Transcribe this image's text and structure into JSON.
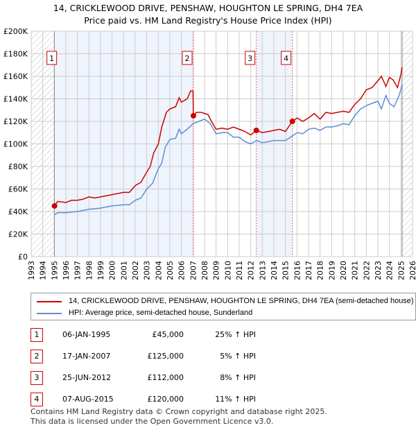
{
  "header": {
    "title": "14, CRICKLEWOOD DRIVE, PENSHAW, HOUGHTON LE SPRING, DH4 7EA",
    "subtitle": "Price paid vs. HM Land Registry's House Price Index (HPI)"
  },
  "colors": {
    "property": "#cc0000",
    "hpi": "#5b8fd4",
    "shade": "#eef3fc"
  },
  "chart_data": {
    "type": "line",
    "xlim": [
      1993,
      2026
    ],
    "ylim": [
      0,
      200000
    ],
    "x_ticks": [
      "1993",
      "1994",
      "1995",
      "1996",
      "1997",
      "1998",
      "1999",
      "2000",
      "2001",
      "2002",
      "2003",
      "2004",
      "2005",
      "2006",
      "2007",
      "2008",
      "2009",
      "2010",
      "2011",
      "2012",
      "2013",
      "2014",
      "2015",
      "2016",
      "2017",
      "2018",
      "2019",
      "2020",
      "2021",
      "2022",
      "2023",
      "2024",
      "2025",
      "2026"
    ],
    "y_ticks": [
      "£0",
      "£20K",
      "£40K",
      "£60K",
      "£80K",
      "£100K",
      "£120K",
      "£140K",
      "£160K",
      "£180K",
      "£200K"
    ],
    "grid": true,
    "series": [
      {
        "name": "14, CRICKLEWOOD DRIVE, PENSHAW, HOUGHTON LE SPRING, DH4 7EA (semi-detached house)",
        "points": [
          [
            1995.0,
            45
          ],
          [
            1995.3,
            49
          ],
          [
            1996,
            48
          ],
          [
            1996.5,
            50
          ],
          [
            1997,
            50
          ],
          [
            1997.5,
            51
          ],
          [
            1998,
            53
          ],
          [
            1998.5,
            52
          ],
          [
            1999,
            53
          ],
          [
            1999.5,
            54
          ],
          [
            2000,
            55
          ],
          [
            2000.5,
            56
          ],
          [
            2001,
            57
          ],
          [
            2001.5,
            57
          ],
          [
            2002,
            63
          ],
          [
            2002.5,
            66
          ],
          [
            2003,
            75
          ],
          [
            2003.3,
            80
          ],
          [
            2003.6,
            92
          ],
          [
            2004,
            100
          ],
          [
            2004.3,
            115
          ],
          [
            2004.7,
            128
          ],
          [
            2005,
            131
          ],
          [
            2005.5,
            133
          ],
          [
            2005.8,
            141
          ],
          [
            2006,
            137
          ],
          [
            2006.5,
            140
          ],
          [
            2006.8,
            147
          ],
          [
            2007.0,
            147
          ],
          [
            2007.04,
            125
          ],
          [
            2007.3,
            128
          ],
          [
            2007.7,
            128
          ],
          [
            2008,
            127
          ],
          [
            2008.3,
            126
          ],
          [
            2008.6,
            120
          ],
          [
            2009,
            113
          ],
          [
            2009.5,
            114
          ],
          [
            2010,
            113
          ],
          [
            2010.5,
            115
          ],
          [
            2011,
            113
          ],
          [
            2011.5,
            111
          ],
          [
            2012,
            108
          ],
          [
            2012.5,
            112
          ],
          [
            2013,
            110
          ],
          [
            2013.5,
            111
          ],
          [
            2014,
            112
          ],
          [
            2014.5,
            113
          ],
          [
            2015,
            111
          ],
          [
            2015.6,
            120
          ],
          [
            2016,
            123
          ],
          [
            2016.5,
            120
          ],
          [
            2017,
            123
          ],
          [
            2017.5,
            127
          ],
          [
            2018,
            122
          ],
          [
            2018.5,
            128
          ],
          [
            2019,
            127
          ],
          [
            2019.5,
            128
          ],
          [
            2020,
            129
          ],
          [
            2020.5,
            128
          ],
          [
            2021,
            135
          ],
          [
            2021.5,
            140
          ],
          [
            2022,
            148
          ],
          [
            2022.5,
            150
          ],
          [
            2023,
            156
          ],
          [
            2023.3,
            160
          ],
          [
            2023.7,
            151
          ],
          [
            2024,
            159
          ],
          [
            2024.3,
            157
          ],
          [
            2024.7,
            150
          ],
          [
            2025,
            162
          ],
          [
            2025.1,
            168
          ]
        ]
      },
      {
        "name": "HPI: Average price, semi-detached house, Sunderland",
        "points": [
          [
            1995,
            37
          ],
          [
            1995.3,
            39
          ],
          [
            1996,
            39
          ],
          [
            1997,
            40
          ],
          [
            1998,
            42
          ],
          [
            1999,
            43
          ],
          [
            2000,
            45
          ],
          [
            2001,
            46
          ],
          [
            2001.5,
            46
          ],
          [
            2002,
            50
          ],
          [
            2002.5,
            52
          ],
          [
            2003,
            60
          ],
          [
            2003.5,
            65
          ],
          [
            2004,
            78
          ],
          [
            2004.3,
            83
          ],
          [
            2004.6,
            97
          ],
          [
            2005,
            104
          ],
          [
            2005.5,
            105
          ],
          [
            2005.8,
            113
          ],
          [
            2006,
            109
          ],
          [
            2006.5,
            113
          ],
          [
            2007,
            118
          ],
          [
            2007.5,
            120
          ],
          [
            2008,
            122
          ],
          [
            2008.5,
            118
          ],
          [
            2009,
            109
          ],
          [
            2009.5,
            110
          ],
          [
            2010,
            110
          ],
          [
            2010.5,
            106
          ],
          [
            2011,
            106
          ],
          [
            2011.5,
            102
          ],
          [
            2012,
            100
          ],
          [
            2012.5,
            103
          ],
          [
            2013,
            101
          ],
          [
            2014,
            103
          ],
          [
            2015,
            103
          ],
          [
            2015.6,
            107
          ],
          [
            2016,
            110
          ],
          [
            2016.5,
            109
          ],
          [
            2017,
            113
          ],
          [
            2017.5,
            114
          ],
          [
            2018,
            112
          ],
          [
            2018.5,
            115
          ],
          [
            2019,
            115
          ],
          [
            2019.5,
            116
          ],
          [
            2020,
            118
          ],
          [
            2020.5,
            117
          ],
          [
            2021,
            125
          ],
          [
            2021.5,
            131
          ],
          [
            2022,
            134
          ],
          [
            2022.5,
            136
          ],
          [
            2023,
            138
          ],
          [
            2023.3,
            131
          ],
          [
            2023.7,
            143
          ],
          [
            2024,
            136
          ],
          [
            2024.4,
            133
          ],
          [
            2024.8,
            142
          ],
          [
            2025.1,
            152
          ]
        ]
      }
    ],
    "sales": [
      {
        "label": "1",
        "x": 1995.02,
        "y": 45
      },
      {
        "label": "2",
        "x": 2007.04,
        "y": 125
      },
      {
        "label": "3",
        "x": 2012.48,
        "y": 112
      },
      {
        "label": "4",
        "x": 2015.6,
        "y": 120
      }
    ]
  },
  "legend": {
    "property": "14, CRICKLEWOOD DRIVE, PENSHAW, HOUGHTON LE SPRING, DH4 7EA (semi-detached house)",
    "hpi": "HPI: Average price, semi-detached house, Sunderland"
  },
  "table": [
    {
      "num": "1",
      "date": "06-JAN-1995",
      "price": "£45,000",
      "pct": "25% ↑ HPI"
    },
    {
      "num": "2",
      "date": "17-JAN-2007",
      "price": "£125,000",
      "pct": "5% ↑ HPI"
    },
    {
      "num": "3",
      "date": "25-JUN-2012",
      "price": "£112,000",
      "pct": "8% ↑ HPI"
    },
    {
      "num": "4",
      "date": "07-AUG-2015",
      "price": "£120,000",
      "pct": "11% ↑ HPI"
    }
  ],
  "footer": {
    "line1": "Contains HM Land Registry data © Crown copyright and database right 2025.",
    "line2": "This data is licensed under the Open Government Licence v3.0."
  }
}
